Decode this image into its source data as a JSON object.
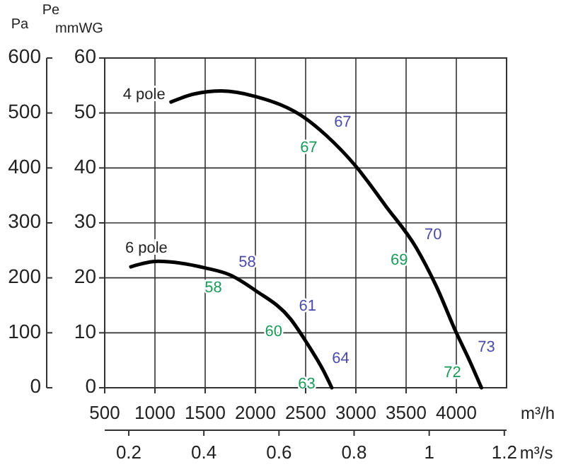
{
  "chart_data": {
    "type": "line",
    "xlabel": "m³/h",
    "x2label": "m³/s",
    "ylabel": "Pe mmWG",
    "y2label": "Pa",
    "xlim": [
      500,
      4500
    ],
    "xticks": [
      500,
      1000,
      1500,
      2000,
      2500,
      3000,
      3500,
      4000
    ],
    "x2lim": [
      0.136,
      1.206
    ],
    "x2ticks": [
      0.2,
      0.4,
      0.6,
      0.8,
      1,
      1.2
    ],
    "ylim": [
      0,
      60
    ],
    "yticks": [
      0,
      10,
      20,
      30,
      40,
      50,
      60
    ],
    "y2lim": [
      0,
      600
    ],
    "y2ticks": [
      0,
      100,
      200,
      300,
      400,
      500,
      600
    ],
    "grid": true,
    "line_style": "solid",
    "marker": "none",
    "series": [
      {
        "name": "4 pole",
        "color": "#000000",
        "x": [
          1160,
          1400,
          1660,
          2000,
          2500,
          2700,
          3000,
          3300,
          3600,
          3800,
          4000,
          4130,
          4250
        ],
        "values": [
          52,
          53.5,
          54,
          53,
          49,
          46,
          40.3,
          33,
          25.5,
          18.5,
          10,
          5,
          0
        ]
      },
      {
        "name": "6 pole",
        "color": "#000000",
        "x": [
          760,
          1030,
          1500,
          1750,
          2000,
          2350,
          2500,
          2680,
          2760
        ],
        "values": [
          22,
          23,
          21.8,
          20.5,
          17.7,
          12.5,
          8.5,
          3,
          0
        ]
      }
    ],
    "annotations": [
      {
        "text": "67",
        "x": 2700,
        "y": 46
      },
      {
        "text": "67",
        "x": 2700,
        "y": 46
      },
      {
        "text": "70",
        "x": 3600,
        "y": 25.5
      },
      {
        "text": "69",
        "x": 3600,
        "y": 25.5
      },
      {
        "text": "73",
        "x": 4130,
        "y": 5
      },
      {
        "text": "72",
        "x": 4130,
        "y": 5
      },
      {
        "text": "58",
        "x": 1750,
        "y": 20.5
      },
      {
        "text": "58",
        "x": 1750,
        "y": 20.5
      },
      {
        "text": "61",
        "x": 2350,
        "y": 12.5
      },
      {
        "text": "60",
        "x": 2350,
        "y": 12.5
      },
      {
        "text": "64",
        "x": 2680,
        "y": 3
      },
      {
        "text": "63",
        "x": 2680,
        "y": 3
      }
    ]
  }
}
